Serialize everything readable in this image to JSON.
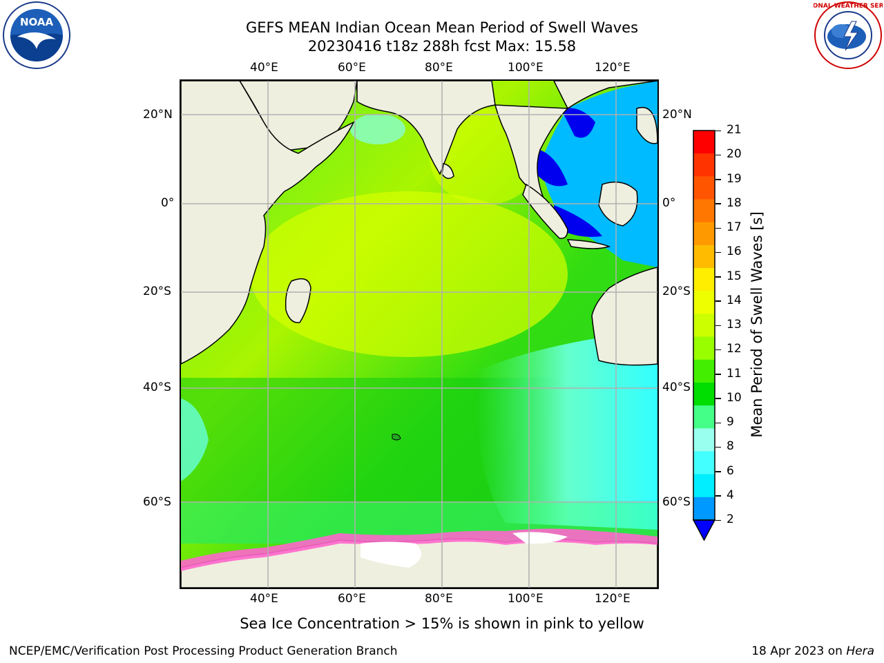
{
  "header": {
    "title_line1": "GEFS MEAN Indian Ocean Mean Period of Swell Waves",
    "title_line2": "20230416 t18z 288h fcst   Max: 15.58"
  },
  "logos": {
    "left": "NOAA",
    "right": "NATIONAL WEATHER SERVICE"
  },
  "map": {
    "lon_ticks": [
      "40°E",
      "60°E",
      "80°E",
      "100°E",
      "120°E"
    ],
    "lat_ticks": [
      "20°N",
      "0°",
      "20°S",
      "40°S",
      "60°S"
    ],
    "land_color": "#efefdf",
    "grid_color": "#b0b0b0"
  },
  "colorbar": {
    "label": "Mean Period of Swell Waves [s]",
    "ticks": [
      "21",
      "20",
      "19",
      "18",
      "17",
      "16",
      "15",
      "14",
      "13",
      "12",
      "11",
      "10",
      "9",
      "8",
      "6",
      "4",
      "2"
    ],
    "colors": [
      "#ff0000",
      "#ff3300",
      "#ff5500",
      "#ff7700",
      "#ff9900",
      "#ffbb00",
      "#ffee00",
      "#eeff00",
      "#ccff00",
      "#99ff00",
      "#44ee00",
      "#00dd00",
      "#44ff88",
      "#99ffee",
      "#44ffff",
      "#00eeff",
      "#0099ff"
    ],
    "under_color": "#0000ff"
  },
  "note": "Sea Ice Concentration > 15% is shown in pink to yellow",
  "footer": {
    "left": "NCEP/EMC/Verification Post Processing Product Generation Branch",
    "date": "18 Apr 2023 on ",
    "machine": "Hera"
  }
}
